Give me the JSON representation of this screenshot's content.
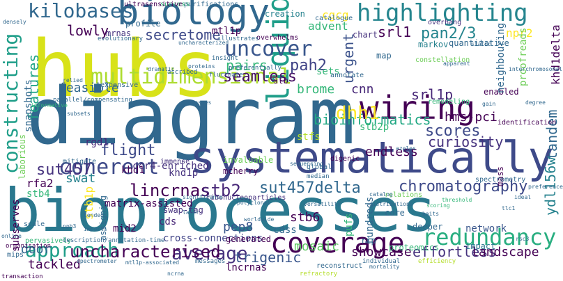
{
  "palette": [
    "#440154",
    "#482878",
    "#3e4a89",
    "#31688e",
    "#26828e",
    "#1f9e89",
    "#35b779",
    "#6ece58",
    "#b5de2b",
    "#fde725"
  ],
  "words": [
    {
      "text": "biology",
      "color": "#31688e"
    },
    {
      "text": "hubs",
      "color": "#d8e219"
    },
    {
      "text": "liquid",
      "color": "#1f9e89"
    },
    {
      "text": "diagram",
      "color": "#31688e"
    },
    {
      "text": "systematically",
      "color": "#3e4a89"
    },
    {
      "text": "bioprocesses",
      "color": "#2a788e"
    },
    {
      "text": "kilobases",
      "color": "#31688e"
    },
    {
      "text": "highlighting",
      "color": "#25858e"
    },
    {
      "text": "uncover",
      "color": "#39568c"
    },
    {
      "text": "multidimensional",
      "color": "#addc30"
    },
    {
      "text": "constructing",
      "color": "#1f9e89"
    },
    {
      "text": "wiring",
      "color": "#440154"
    },
    {
      "text": "coverage",
      "color": "#440154"
    },
    {
      "text": "approach",
      "color": "#1f9e89"
    },
    {
      "text": "redundancy",
      "color": "#28ae80"
    },
    {
      "text": "average",
      "color": "#46327e"
    },
    {
      "text": "coherent",
      "color": "#3e4a89"
    },
    {
      "text": "chromatography",
      "color": "#3e4a89"
    },
    {
      "text": "sut457",
      "color": "#46327e"
    },
    {
      "text": "sut457delta",
      "color": "#31688e"
    },
    {
      "text": "bioinformatics",
      "color": "#22a884"
    },
    {
      "text": "uncharacterised",
      "color": "#440154"
    },
    {
      "text": "lincrnas",
      "color": "#440154"
    },
    {
      "text": "stb2",
      "color": "#482878"
    },
    {
      "text": "dhh1",
      "color": "#fde725"
    },
    {
      "text": "pan2/3",
      "color": "#25858e"
    },
    {
      "text": "seamless",
      "color": "#471164"
    },
    {
      "text": "pah2",
      "color": "#414487"
    },
    {
      "text": "pairs",
      "color": "#35b779"
    },
    {
      "text": "secretome",
      "color": "#3e4a89"
    },
    {
      "text": "lowly",
      "color": "#440154"
    },
    {
      "text": "features",
      "color": "#20a486"
    },
    {
      "text": "urgent",
      "color": "#3b528b"
    },
    {
      "text": "flight",
      "color": "#3e4a89"
    },
    {
      "text": "scores",
      "color": "#3e4a89"
    },
    {
      "text": "curiosity",
      "color": "#46327e"
    },
    {
      "text": "tandem",
      "color": "#31688e"
    },
    {
      "text": "srl1p",
      "color": "#482878"
    },
    {
      "text": "srl1",
      "color": "#440154"
    },
    {
      "text": "hms-pci",
      "color": "#440154"
    },
    {
      "text": "trigenic",
      "color": "#39568c"
    },
    {
      "text": "effortless",
      "color": "#46327e"
    },
    {
      "text": "showcase",
      "color": "#440154"
    },
    {
      "text": "landscape",
      "color": "#440154"
    },
    {
      "text": "mosaic",
      "color": "#5ec962"
    },
    {
      "text": "ydl156w",
      "color": "#26828e"
    },
    {
      "text": "endless",
      "color": "#440154"
    },
    {
      "text": "cnn",
      "color": "#482878"
    },
    {
      "text": "brome",
      "color": "#35b779"
    },
    {
      "text": "feasible",
      "color": "#31688e"
    },
    {
      "text": "stb6",
      "color": "#440154"
    },
    {
      "text": "pep8",
      "color": "#39568c"
    },
    {
      "text": "door",
      "color": "#31688e"
    },
    {
      "text": "tackled",
      "color": "#440154"
    },
    {
      "text": "swat",
      "color": "#26828e"
    },
    {
      "text": "rfa2",
      "color": "#440154"
    },
    {
      "text": "stb1p",
      "color": "#fde725"
    },
    {
      "text": "stb4",
      "color": "#35b779"
    },
    {
      "text": "khd1p",
      "color": "#46327e"
    },
    {
      "text": "khd1",
      "color": "#440154"
    },
    {
      "text": "rgd1",
      "color": "#482878"
    },
    {
      "text": "stb2p",
      "color": "#35b779"
    },
    {
      "text": "stfs",
      "color": "#b5de2b"
    },
    {
      "text": "cgcg",
      "color": "#fde725"
    },
    {
      "text": "advent",
      "color": "#35b779"
    },
    {
      "text": "mtl1p",
      "color": "#440154"
    },
    {
      "text": "npr2",
      "color": "#fde725"
    },
    {
      "text": "khd1delta",
      "color": "#440154"
    },
    {
      "text": "snapshots",
      "color": "#31688e"
    },
    {
      "text": "laborious",
      "color": "#6ece58"
    },
    {
      "text": "cross-connections",
      "color": "#414487"
    },
    {
      "text": "matrix-assisted",
      "color": "#440154"
    },
    {
      "text": "ccr4-enriched",
      "color": "#46327e"
    },
    {
      "text": "subserves",
      "color": "#440154"
    },
    {
      "text": "cds",
      "color": "#482878"
    },
    {
      "text": "cdss",
      "color": "#31688e"
    },
    {
      "text": "pufs",
      "color": "#35b779"
    },
    {
      "text": "hundreds",
      "color": "#31688e"
    },
    {
      "text": "network",
      "color": "#39568c"
    },
    {
      "text": "impact",
      "color": "#2a788e"
    },
    {
      "text": "proteomics",
      "color": "#35b779"
    },
    {
      "text": "lncrnas",
      "color": "#440154"
    },
    {
      "text": "mid2",
      "color": "#440154"
    },
    {
      "text": "assigning",
      "color": "#31688e"
    },
    {
      "text": "sets",
      "color": "#35b779"
    },
    {
      "text": "enabled",
      "color": "#440154"
    },
    {
      "text": "proofreads",
      "color": "#6ece58"
    },
    {
      "text": "neighbouring",
      "color": "#31688e"
    },
    {
      "text": "mass",
      "color": "#440154"
    },
    {
      "text": "map",
      "color": "#31688e"
    },
    {
      "text": "markov",
      "color": "#26828e"
    },
    {
      "text": "chart",
      "color": "#46327e"
    },
    {
      "text": "quantitative",
      "color": "#31688e"
    },
    {
      "text": "creation",
      "color": "#26828e"
    },
    {
      "text": "stb",
      "color": "#440154"
    },
    {
      "text": "profile",
      "color": "#31688e"
    },
    {
      "text": "mrnas",
      "color": "#46327e"
    },
    {
      "text": "overwhelms",
      "color": "#440154"
    },
    {
      "text": "mcherry",
      "color": "#440154"
    },
    {
      "text": "invaluable",
      "color": "#6ece58"
    },
    {
      "text": "generated",
      "color": "#440154"
    },
    {
      "text": "deeper",
      "color": "#31688e"
    },
    {
      "text": "core",
      "color": "#31688e"
    },
    {
      "text": "rip",
      "color": "#31688e"
    },
    {
      "text": "swap-tag",
      "color": "#46327e"
    },
    {
      "text": "reconstruct",
      "color": "#31688e"
    },
    {
      "text": "identification",
      "color": "#440154"
    },
    {
      "text": "scale",
      "color": "#31688e"
    },
    {
      "text": "mitigate",
      "color": "#31688e"
    },
    {
      "text": "immense",
      "color": "#46327e"
    },
    {
      "text": "annotate",
      "color": "#31688e"
    },
    {
      "text": "remodeling",
      "color": "#35b779"
    },
    {
      "text": "expensive",
      "color": "#31688e"
    },
    {
      "text": "overhang",
      "color": "#46327e"
    },
    {
      "text": "catalogue",
      "color": "#31688e"
    },
    {
      "text": "success",
      "color": "#35b779"
    },
    {
      "text": "purifications",
      "color": "#31688e"
    },
    {
      "text": "ultrasensitive",
      "color": "#440154"
    },
    {
      "text": "evolutionary",
      "color": "#31688e"
    },
    {
      "text": "illustrates",
      "color": "#31688e"
    },
    {
      "text": "constellation",
      "color": "#6ece58"
    },
    {
      "text": "parallel/compensating",
      "color": "#31688e"
    },
    {
      "text": "pervasively",
      "color": "#35b779"
    },
    {
      "text": "description/annotation-time",
      "color": "#31688e"
    },
    {
      "text": "ribonucleoparticles",
      "color": "#46327e"
    },
    {
      "text": "relations",
      "color": "#6ece58"
    },
    {
      "text": "digenic",
      "color": "#440154"
    },
    {
      "text": "global",
      "color": "#31688e"
    },
    {
      "text": "median",
      "color": "#31688e"
    },
    {
      "text": "spectrometry",
      "color": "#31688e"
    },
    {
      "text": "preference",
      "color": "#31688e"
    },
    {
      "text": "organisation",
      "color": "#440154"
    },
    {
      "text": "mips",
      "color": "#31688e"
    },
    {
      "text": "transaction",
      "color": "#440154"
    },
    {
      "text": "individual",
      "color": "#31688e"
    },
    {
      "text": "efficiency",
      "color": "#b5de2b"
    },
    {
      "text": "messages",
      "color": "#31688e"
    },
    {
      "text": "refractory",
      "color": "#b5de2b"
    },
    {
      "text": "ncrna",
      "color": "#31688e"
    },
    {
      "text": "fluctuate",
      "color": "#31688e"
    },
    {
      "text": "insight",
      "color": "#31688e"
    },
    {
      "text": "preferentially",
      "color": "#31688e"
    },
    {
      "text": "uncharacterized",
      "color": "#31688e"
    },
    {
      "text": "ascribed",
      "color": "#31688e"
    },
    {
      "text": "dramatic",
      "color": "#31688e"
    },
    {
      "text": "proteins",
      "color": "#31688e"
    },
    {
      "text": "processes",
      "color": "#31688e"
    },
    {
      "text": "densely",
      "color": "#31688e"
    },
    {
      "text": "informative",
      "color": "#35b779"
    },
    {
      "text": "relied",
      "color": "#31688e"
    },
    {
      "text": "subsets",
      "color": "#31688e"
    },
    {
      "text": "azoles",
      "color": "#31688e"
    },
    {
      "text": "sequencing",
      "color": "#31688e"
    },
    {
      "text": "gain",
      "color": "#31688e"
    },
    {
      "text": "degree",
      "color": "#31688e"
    },
    {
      "text": "significance",
      "color": "#31688e"
    },
    {
      "text": "baits",
      "color": "#31688e"
    },
    {
      "text": "distributions",
      "color": "#31688e"
    },
    {
      "text": "versatility",
      "color": "#31688e"
    },
    {
      "text": "mortality",
      "color": "#31688e"
    },
    {
      "text": "polyclonal",
      "color": "#31688e"
    },
    {
      "text": "threshold",
      "color": "#35b779"
    },
    {
      "text": "imports",
      "color": "#31688e"
    },
    {
      "text": "tended",
      "color": "#31688e"
    },
    {
      "text": "online",
      "color": "#31688e"
    },
    {
      "text": "rsc3",
      "color": "#31688e"
    },
    {
      "text": "mtl1p-associated",
      "color": "#31688e"
    },
    {
      "text": "spectrometer",
      "color": "#31688e"
    },
    {
      "text": "pph3",
      "color": "#31688e"
    },
    {
      "text": "apparent",
      "color": "#31688e"
    },
    {
      "text": "static",
      "color": "#31688e"
    },
    {
      "text": "interchromosomal",
      "color": "#31688e"
    },
    {
      "text": "catalog",
      "color": "#31688e"
    },
    {
      "text": "worldwide",
      "color": "#31688e"
    },
    {
      "text": "tlc1",
      "color": "#31688e"
    },
    {
      "text": "laser",
      "color": "#31688e"
    },
    {
      "text": "scoring",
      "color": "#35b779"
    },
    {
      "text": "ideal",
      "color": "#31688e"
    }
  ]
}
